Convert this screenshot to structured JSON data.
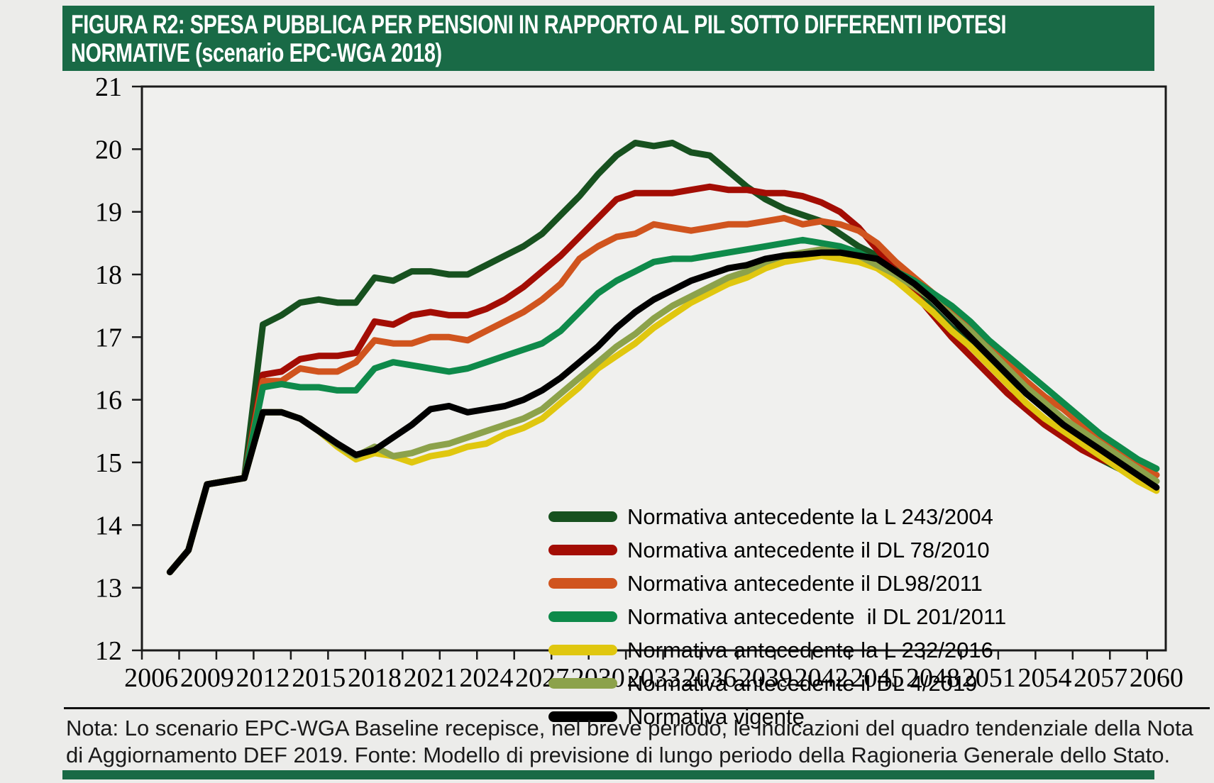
{
  "title": {
    "line1": "FIGURA R2: SPESA PUBBLICA PER PENSIONI IN RAPPORTO AL PIL SOTTO DIFFERENTI IPOTESI",
    "line2": "NORMATIVE (scenario EPC-WGA 2018)"
  },
  "note": "Nota: Lo scenario EPC-WGA Baseline recepisce, nel breve periodo, le indicazioni del quadro tendenziale della Nota di Aggiornamento DEF 2019. Fonte: Modello di previsione di lungo periodo della Ragioneria Generale dello Stato.",
  "colors": {
    "header_green": "#196A46",
    "page_bg": "#ECECEA",
    "plot_bg": "#F0F0EE",
    "axis": "#1A1A1A"
  },
  "chart_data": {
    "type": "line",
    "title": "Spesa pubblica per pensioni in rapporto al PIL sotto differenti ipotesi normative (scenario EPC-WGA 2018)",
    "xlabel": "",
    "ylabel": "",
    "ylim": [
      12,
      21
    ],
    "xlim": [
      2005.5,
      2060.5
    ],
    "y_ticks": [
      12,
      13,
      14,
      15,
      16,
      17,
      18,
      19,
      20,
      21
    ],
    "x_label_ticks": [
      2006,
      2009,
      2012,
      2015,
      2018,
      2021,
      2024,
      2027,
      2030,
      2033,
      2036,
      2039,
      2042,
      2045,
      2048,
      2051,
      2054,
      2057,
      2060
    ],
    "grid": false,
    "legend_position": "inside-right-middle",
    "x": [
      2007,
      2008,
      2009,
      2010,
      2011,
      2012,
      2013,
      2014,
      2015,
      2016,
      2017,
      2018,
      2019,
      2020,
      2021,
      2022,
      2023,
      2024,
      2025,
      2026,
      2027,
      2028,
      2029,
      2030,
      2031,
      2032,
      2033,
      2034,
      2035,
      2036,
      2037,
      2038,
      2039,
      2040,
      2041,
      2042,
      2043,
      2044,
      2045,
      2046,
      2047,
      2048,
      2049,
      2050,
      2051,
      2052,
      2053,
      2054,
      2055,
      2056,
      2057,
      2058,
      2059,
      2060
    ],
    "series": [
      {
        "name": "Normativa antecedente la L 243/2004",
        "color": "#17511F",
        "values": [
          13.25,
          13.6,
          14.65,
          14.7,
          14.75,
          17.2,
          17.35,
          17.55,
          17.6,
          17.55,
          17.55,
          17.95,
          17.9,
          18.05,
          18.05,
          18.0,
          18.0,
          18.15,
          18.3,
          18.45,
          18.65,
          18.95,
          19.25,
          19.6,
          19.9,
          20.1,
          20.05,
          20.1,
          19.95,
          19.9,
          19.65,
          19.4,
          19.2,
          19.05,
          18.95,
          18.85,
          18.65,
          18.45,
          18.3,
          18.1,
          17.75,
          17.45,
          17.15,
          16.9,
          16.6,
          16.3,
          16.15,
          15.95,
          15.6,
          15.25,
          15.05,
          14.9,
          14.8,
          14.7
        ]
      },
      {
        "name": "Normativa antecedente il DL 78/2010",
        "color": "#A30D04",
        "values": [
          13.25,
          13.6,
          14.65,
          14.7,
          14.75,
          16.4,
          16.45,
          16.65,
          16.7,
          16.7,
          16.75,
          17.25,
          17.2,
          17.35,
          17.4,
          17.35,
          17.35,
          17.45,
          17.6,
          17.8,
          18.05,
          18.3,
          18.6,
          18.9,
          19.2,
          19.3,
          19.3,
          19.3,
          19.35,
          19.4,
          19.35,
          19.35,
          19.3,
          19.3,
          19.25,
          19.15,
          19.0,
          18.75,
          18.4,
          18.05,
          17.7,
          17.35,
          17.0,
          16.7,
          16.4,
          16.1,
          15.85,
          15.6,
          15.4,
          15.2,
          15.05,
          14.95,
          14.85,
          14.8
        ]
      },
      {
        "name": "Normativa antecedente il DL98/2011",
        "color": "#D0541E",
        "values": [
          13.25,
          13.6,
          14.65,
          14.7,
          14.75,
          16.3,
          16.3,
          16.5,
          16.45,
          16.45,
          16.6,
          16.95,
          16.9,
          16.9,
          17.0,
          17.0,
          16.95,
          17.1,
          17.25,
          17.4,
          17.6,
          17.85,
          18.25,
          18.45,
          18.6,
          18.65,
          18.8,
          18.75,
          18.7,
          18.75,
          18.8,
          18.8,
          18.85,
          18.9,
          18.8,
          18.85,
          18.8,
          18.7,
          18.5,
          18.2,
          17.95,
          17.7,
          17.45,
          17.2,
          16.9,
          16.6,
          16.3,
          16.05,
          15.85,
          15.6,
          15.35,
          15.15,
          14.95,
          14.8
        ]
      },
      {
        "name": "Normativa antecedente  il DL 201/2011",
        "color": "#0E8A4A",
        "values": [
          13.25,
          13.6,
          14.65,
          14.7,
          14.75,
          16.2,
          16.25,
          16.2,
          16.2,
          16.15,
          16.15,
          16.5,
          16.6,
          16.55,
          16.5,
          16.45,
          16.5,
          16.6,
          16.7,
          16.8,
          16.9,
          17.1,
          17.4,
          17.7,
          17.9,
          18.05,
          18.2,
          18.25,
          18.25,
          18.3,
          18.35,
          18.4,
          18.45,
          18.5,
          18.55,
          18.5,
          18.45,
          18.35,
          18.2,
          18.05,
          17.9,
          17.7,
          17.5,
          17.25,
          16.95,
          16.7,
          16.45,
          16.2,
          15.95,
          15.7,
          15.45,
          15.25,
          15.05,
          14.9
        ]
      },
      {
        "name": "Normativa antecedente la L 232/2016",
        "color": "#E0C70F",
        "values": [
          13.25,
          13.6,
          14.65,
          14.7,
          14.75,
          15.8,
          15.8,
          15.7,
          15.5,
          15.25,
          15.05,
          15.15,
          15.1,
          15.0,
          15.1,
          15.15,
          15.25,
          15.3,
          15.45,
          15.55,
          15.7,
          15.95,
          16.2,
          16.5,
          16.7,
          16.9,
          17.15,
          17.35,
          17.55,
          17.7,
          17.85,
          17.95,
          18.1,
          18.2,
          18.25,
          18.3,
          18.25,
          18.2,
          18.1,
          17.9,
          17.65,
          17.4,
          17.1,
          16.85,
          16.55,
          16.25,
          15.95,
          15.7,
          15.5,
          15.3,
          15.1,
          14.9,
          14.7,
          14.55
        ]
      },
      {
        "name": "Normativa antecedente il DL 4/2019",
        "color": "#8CA24B",
        "values": [
          13.25,
          13.6,
          14.65,
          14.7,
          14.75,
          15.8,
          15.8,
          15.7,
          15.5,
          15.28,
          15.1,
          15.25,
          15.1,
          15.15,
          15.25,
          15.3,
          15.4,
          15.5,
          15.6,
          15.7,
          15.85,
          16.1,
          16.35,
          16.6,
          16.85,
          17.05,
          17.3,
          17.5,
          17.65,
          17.8,
          17.95,
          18.05,
          18.2,
          18.3,
          18.35,
          18.4,
          18.35,
          18.3,
          18.15,
          18.0,
          17.8,
          17.6,
          17.35,
          17.1,
          16.8,
          16.5,
          16.2,
          15.95,
          15.7,
          15.5,
          15.3,
          15.1,
          14.9,
          14.7
        ]
      },
      {
        "name": "Normativa vigente",
        "color": "#000000",
        "values": [
          13.25,
          13.6,
          14.65,
          14.7,
          14.75,
          15.8,
          15.8,
          15.7,
          15.5,
          15.3,
          15.12,
          15.2,
          15.4,
          15.6,
          15.85,
          15.9,
          15.8,
          15.85,
          15.9,
          16.0,
          16.15,
          16.35,
          16.6,
          16.85,
          17.15,
          17.4,
          17.6,
          17.75,
          17.9,
          18.0,
          18.1,
          18.15,
          18.25,
          18.3,
          18.32,
          18.35,
          18.35,
          18.3,
          18.25,
          18.05,
          17.85,
          17.6,
          17.3,
          17.0,
          16.7,
          16.4,
          16.1,
          15.85,
          15.6,
          15.4,
          15.2,
          15.0,
          14.8,
          14.6
        ]
      }
    ]
  }
}
